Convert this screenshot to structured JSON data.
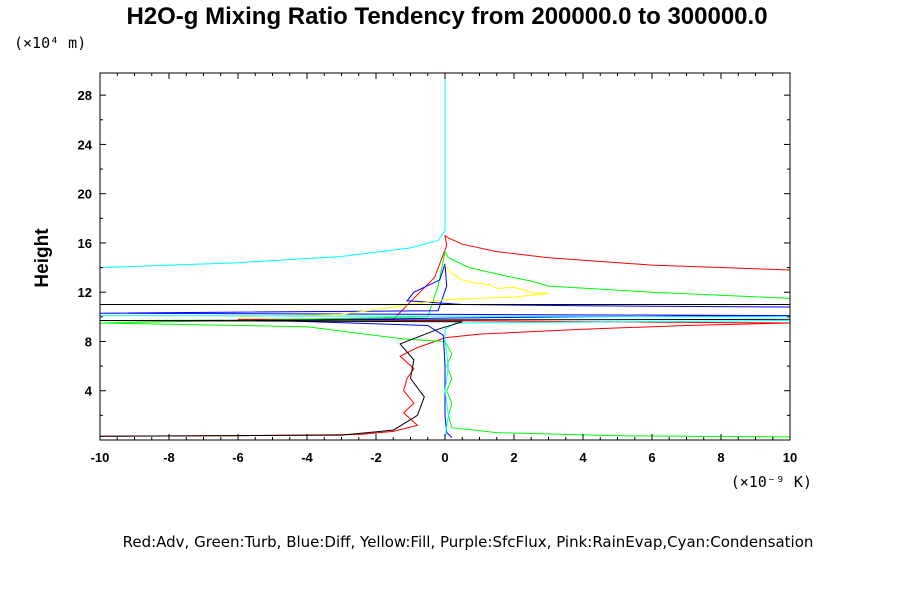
{
  "chart_data": {
    "type": "line",
    "title": "H2O-g Mixing Ratio Tendency from 200000.0 to 300000.0",
    "ylabel": "Height",
    "xlabel": "",
    "y_unit_label": "(×10⁴ m)",
    "x_unit_label": "(×10⁻⁹ K)",
    "xlim": [
      -10,
      10
    ],
    "ylim": [
      0,
      29.8
    ],
    "x_ticks": [
      -10,
      -8,
      -6,
      -4,
      -2,
      0,
      2,
      4,
      6,
      8,
      10
    ],
    "y_ticks": [
      4,
      8,
      12,
      16,
      20,
      24,
      28
    ],
    "grid": false,
    "legend_text": "Red:Adv, Green:Turb, Blue:Diff, Yellow:Fill, Purple:SfcFlux, Pink:RainEvap,Cyan:Condensation",
    "series": [
      {
        "name": "Red:Adv",
        "color": "#ff0000",
        "points": [
          [
            10,
            13.8
          ],
          [
            6,
            14.2
          ],
          [
            3,
            14.8
          ],
          [
            1.5,
            15.3
          ],
          [
            0.5,
            15.9
          ],
          [
            0.1,
            16.4
          ],
          [
            0,
            16.6
          ],
          [
            0.05,
            15.8
          ],
          [
            -0.3,
            13.2
          ],
          [
            -1.5,
            9.8
          ],
          [
            -6,
            9.8
          ],
          [
            10,
            9.5
          ],
          [
            7,
            9.3
          ],
          [
            4,
            9.0
          ],
          [
            1,
            8.6
          ],
          [
            0,
            8.3
          ],
          [
            -0.8,
            7.5
          ],
          [
            -1.3,
            6.8
          ],
          [
            -0.9,
            5.8
          ],
          [
            -1.1,
            5.0
          ],
          [
            -1.2,
            4.0
          ],
          [
            -0.9,
            3.0
          ],
          [
            -1.2,
            2.2
          ],
          [
            -0.8,
            1.2
          ],
          [
            -1.5,
            0.7
          ],
          [
            -2.5,
            0.45
          ],
          [
            -6,
            0.35
          ],
          [
            -10,
            0.3
          ]
        ]
      },
      {
        "name": "Green:Turb",
        "color": "#00ff00",
        "points": [
          [
            10,
            11.5
          ],
          [
            6,
            12.0
          ],
          [
            3,
            12.5
          ],
          [
            2.5,
            12.9
          ],
          [
            1.8,
            13.3
          ],
          [
            0.7,
            14.0
          ],
          [
            0.1,
            14.8
          ],
          [
            0,
            15.3
          ],
          [
            -0.2,
            12.5
          ],
          [
            -0.5,
            10.0
          ],
          [
            -10,
            9.5
          ],
          [
            -4,
            9.2
          ],
          [
            -1.2,
            8.2
          ],
          [
            0,
            8.0
          ],
          [
            0.2,
            7.0
          ],
          [
            0.05,
            6.0
          ],
          [
            0.2,
            5.0
          ],
          [
            0.05,
            4.0
          ],
          [
            0.2,
            3.0
          ],
          [
            0.1,
            2.0
          ],
          [
            0.2,
            1.0
          ],
          [
            1.5,
            0.6
          ],
          [
            5,
            0.35
          ],
          [
            10,
            0.25
          ]
        ]
      },
      {
        "name": "Blue:Diff",
        "color": "#0000ff",
        "points": [
          [
            10,
            10.8
          ],
          [
            4,
            10.9
          ],
          [
            0.5,
            11.0
          ],
          [
            -1.1,
            11.3
          ],
          [
            -0.9,
            12.0
          ],
          [
            -0.15,
            13.0
          ],
          [
            0,
            14.3
          ],
          [
            0.05,
            12.5
          ],
          [
            -0.2,
            10.5
          ],
          [
            -10,
            10.3
          ],
          [
            10,
            10.1
          ],
          [
            4,
            10.0
          ],
          [
            0,
            9.9
          ],
          [
            -5,
            9.7
          ],
          [
            -0.5,
            9.3
          ],
          [
            -0.05,
            8.5
          ],
          [
            0,
            6.0
          ],
          [
            0,
            2.0
          ],
          [
            0.05,
            0.6
          ],
          [
            0.2,
            0.2
          ]
        ]
      },
      {
        "name": "Yellow:Fill",
        "color": "#ffff00",
        "points": [
          [
            0,
            14.2
          ],
          [
            0.2,
            13.5
          ],
          [
            0.5,
            13.0
          ],
          [
            0.8,
            12.8
          ],
          [
            1.3,
            12.6
          ],
          [
            1.5,
            12.3
          ],
          [
            2.0,
            12.4
          ],
          [
            2.5,
            12.0
          ],
          [
            3,
            11.9
          ],
          [
            2,
            11.6
          ],
          [
            0,
            11.4
          ],
          [
            -3,
            10.2
          ],
          [
            -6,
            10.0
          ]
        ]
      },
      {
        "name": "Cyan:Condensation",
        "color": "#00ffff",
        "points": [
          [
            0,
            29.8
          ],
          [
            0,
            17.0
          ],
          [
            -0.2,
            16.2
          ],
          [
            -1,
            15.6
          ],
          [
            -3,
            14.9
          ],
          [
            -6,
            14.4
          ],
          [
            -10,
            14.0
          ],
          [
            -10,
            13.9
          ],
          [
            -10,
            10.1
          ],
          [
            10,
            10.0
          ],
          [
            10,
            9.7
          ],
          [
            0.3,
            9.5
          ],
          [
            0,
            9.0
          ],
          [
            0,
            8.0
          ],
          [
            0.1,
            6.0
          ],
          [
            0,
            4.0
          ],
          [
            0.1,
            2.0
          ],
          [
            0,
            0.2
          ]
        ]
      },
      {
        "name": "Black",
        "color": "#000000",
        "points": [
          [
            -10,
            11.0
          ],
          [
            10,
            11.0
          ],
          [
            10,
            9.8
          ],
          [
            -10,
            9.7
          ],
          [
            0.5,
            9.6
          ],
          [
            -0.2,
            9.0
          ],
          [
            -1.3,
            7.8
          ],
          [
            -0.9,
            6.5
          ],
          [
            -1.0,
            5.0
          ],
          [
            -0.6,
            3.5
          ],
          [
            -0.8,
            2.0
          ],
          [
            -1.5,
            0.8
          ],
          [
            -3,
            0.4
          ],
          [
            -10,
            0.3
          ]
        ]
      }
    ],
    "legend_placement": "bottom"
  }
}
